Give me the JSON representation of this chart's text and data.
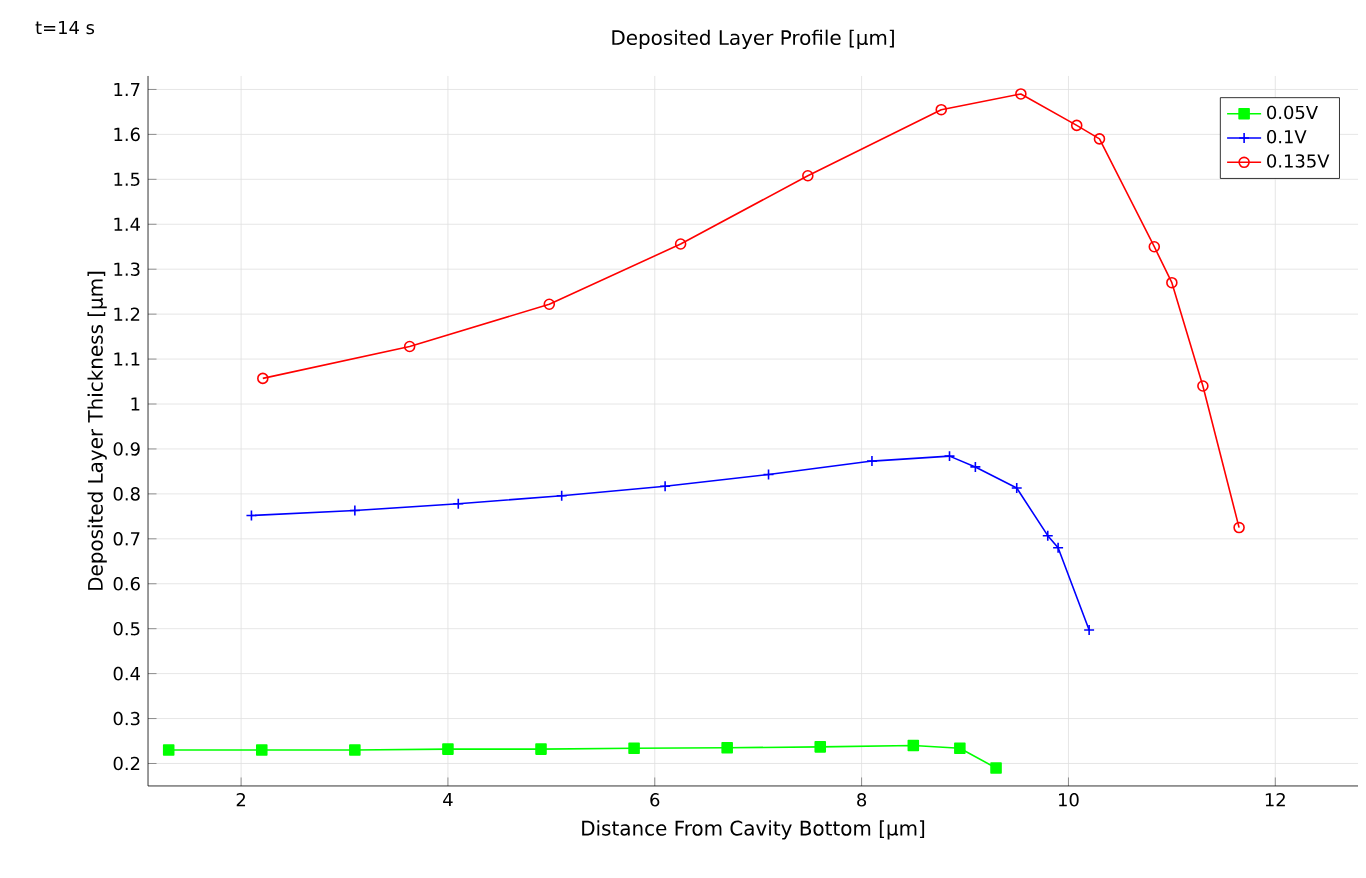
{
  "chart_data": {
    "type": "line",
    "title": "Deposited Layer Profile [µm]",
    "xlabel": "Distance From Cavity Bottom [µm]",
    "ylabel": "Deposited Layer Thickness [µm]",
    "annotations": [
      "t=14 s"
    ],
    "xlim": [
      1.1,
      12.8
    ],
    "ylim": [
      0.15,
      1.73
    ],
    "xticks": [
      2,
      4,
      6,
      8,
      10,
      12
    ],
    "yticks": [
      0.2,
      0.3,
      0.4,
      0.5,
      0.6,
      0.7,
      0.8,
      0.9,
      1,
      1.1,
      1.2,
      1.3,
      1.4,
      1.5,
      1.6,
      1.7
    ],
    "grid": true,
    "legend": "top right",
    "line_style": "solid",
    "series": [
      {
        "name": "0.05V",
        "color": "#00ff00",
        "marker": "square",
        "x": [
          1.3,
          2.2,
          3.1,
          4.0,
          4.9,
          5.8,
          6.7,
          7.6,
          8.5,
          8.95,
          9.3
        ],
        "values": [
          0.23,
          0.23,
          0.23,
          0.232,
          0.232,
          0.234,
          0.235,
          0.237,
          0.24,
          0.234,
          0.19
        ]
      },
      {
        "name": "0.1V",
        "color": "#0000ff",
        "marker": "cross",
        "x": [
          2.1,
          3.1,
          4.1,
          5.1,
          6.1,
          7.1,
          8.1,
          8.85,
          9.1,
          9.5,
          9.8,
          9.9,
          10.2
        ],
        "values": [
          0.752,
          0.763,
          0.778,
          0.796,
          0.817,
          0.843,
          0.873,
          0.884,
          0.86,
          0.813,
          0.707,
          0.68,
          0.497
        ]
      },
      {
        "name": "0.135V",
        "color": "#ff0000",
        "marker": "circle",
        "x": [
          2.21,
          3.63,
          4.98,
          6.25,
          7.48,
          8.77,
          9.54,
          10.08,
          10.3,
          10.83,
          11.0,
          11.3,
          11.65
        ],
        "values": [
          1.057,
          1.128,
          1.222,
          1.356,
          1.508,
          1.655,
          1.69,
          1.62,
          1.59,
          1.35,
          1.27,
          1.04,
          0.725
        ]
      }
    ]
  }
}
